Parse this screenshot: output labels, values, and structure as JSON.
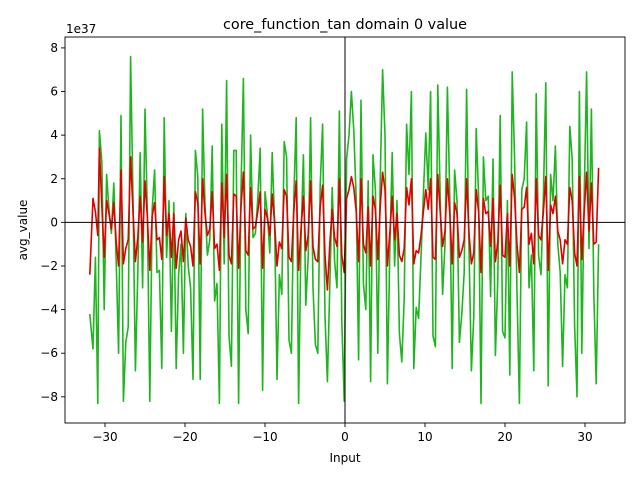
{
  "chart_data": {
    "type": "line",
    "title": "core_function_tan domain 0 value",
    "xlabel": "Input",
    "ylabel": "avg_value",
    "y_offset_label": "1e37",
    "xlim": [
      -35,
      35
    ],
    "ylim": [
      -9.2,
      8.5
    ],
    "x_ticks": [
      -30,
      -20,
      -10,
      0,
      10,
      20,
      30
    ],
    "x_tick_labels": [
      "−30",
      "−20",
      "−10",
      "0",
      "10",
      "20",
      "30"
    ],
    "y_ticks": [
      -8,
      -6,
      -4,
      -2,
      0,
      2,
      4,
      6,
      8
    ],
    "y_tick_labels": [
      "−8",
      "−6",
      "−4",
      "−2",
      "0",
      "2",
      "4",
      "6",
      "8"
    ],
    "zero_lines": true,
    "grid": false,
    "x_domain": [
      -31.9,
      31.9
    ],
    "series": [
      {
        "color": "#2ca02c",
        "stroke": "#1fb51f",
        "x": [
          -31.9,
          -31.5,
          -31.2,
          -30.9,
          -30.7,
          -30.4,
          -30.1,
          -29.8,
          -29.5,
          -29.2,
          -28.9,
          -28.6,
          -28.3,
          -28.0,
          -27.7,
          -27.4,
          -27.1,
          -26.8,
          -26.5,
          -26.2,
          -25.9,
          -25.6,
          -25.3,
          -25.0,
          -24.7,
          -24.4,
          -24.1,
          -23.8,
          -23.5,
          -23.2,
          -22.9,
          -22.6,
          -22.3,
          -22.0,
          -21.7,
          -21.4,
          -21.1,
          -20.8,
          -20.5,
          -20.2,
          -19.9,
          -19.6,
          -19.3,
          -19.0,
          -18.7,
          -18.4,
          -18.1,
          -17.8,
          -17.5,
          -17.2,
          -16.9,
          -16.6,
          -16.3,
          -16.0,
          -15.7,
          -15.4,
          -15.1,
          -14.8,
          -14.5,
          -14.2,
          -13.9,
          -13.6,
          -13.3,
          -13.0,
          -12.7,
          -12.4,
          -12.1,
          -11.8,
          -11.5,
          -11.2,
          -10.9,
          -10.6,
          -10.3,
          -10.0,
          -9.7,
          -9.4,
          -9.1,
          -8.8,
          -8.5,
          -8.2,
          -7.9,
          -7.6,
          -7.3,
          -7.0,
          -6.7,
          -6.4,
          -6.1,
          -5.8,
          -5.5,
          -5.2,
          -4.9,
          -4.6,
          -4.3,
          -4.0,
          -3.7,
          -3.4,
          -3.1,
          -2.8,
          -2.5,
          -2.2,
          -1.9,
          -1.6,
          -1.3,
          -1.0,
          -0.7,
          -0.4,
          -0.1,
          0.2,
          0.5,
          0.8,
          1.1,
          1.4,
          1.7,
          2.0,
          2.3,
          2.6,
          2.9,
          3.2,
          3.5,
          3.8,
          4.1,
          4.4,
          4.7,
          5.0,
          5.3,
          5.6,
          5.9,
          6.2,
          6.5,
          6.8,
          7.1,
          7.4,
          7.7,
          8.0,
          8.3,
          8.6,
          8.9,
          9.2,
          9.5,
          9.8,
          10.1,
          10.4,
          10.7,
          11.0,
          11.3,
          11.6,
          11.9,
          12.2,
          12.5,
          12.8,
          13.1,
          13.4,
          13.7,
          14.0,
          14.3,
          14.6,
          14.9,
          15.2,
          15.5,
          15.8,
          16.1,
          16.4,
          16.7,
          17.0,
          17.3,
          17.6,
          17.9,
          18.2,
          18.5,
          18.8,
          19.1,
          19.4,
          19.7,
          20.0,
          20.3,
          20.6,
          20.9,
          21.2,
          21.5,
          21.8,
          22.1,
          22.4,
          22.7,
          23.0,
          23.3,
          23.6,
          23.9,
          24.2,
          24.5,
          24.8,
          25.1,
          25.4,
          25.7,
          26.0,
          26.3,
          26.6,
          26.9,
          27.2,
          27.5,
          27.8,
          28.1,
          28.4,
          28.7,
          29.0,
          29.3,
          29.6,
          29.9,
          30.2,
          30.5,
          30.8,
          31.1,
          31.4,
          31.7
        ],
        "y": [
          -4.2,
          -5.8,
          -1.6,
          -8.3,
          4.2,
          2.8,
          -4.0,
          2.2,
          0.6,
          -0.5,
          1.8,
          -1.8,
          -6.0,
          4.9,
          -8.2,
          -5.5,
          -4.8,
          7.6,
          1.1,
          -6.8,
          -2.3,
          3.2,
          -3.0,
          5.2,
          0.3,
          -8.2,
          0.6,
          2.4,
          -2.3,
          -2.2,
          -6.7,
          4.8,
          -1.6,
          1.0,
          -5.0,
          0.9,
          -6.7,
          -2.4,
          -1.0,
          -6.0,
          0.4,
          -2.0,
          -3.0,
          -7.2,
          3.3,
          2.1,
          -7.2,
          5.2,
          0.8,
          -1.5,
          -0.8,
          3.5,
          -3.6,
          -2.8,
          -8.3,
          4.5,
          -1.9,
          6.5,
          -5.2,
          -6.6,
          3.3,
          3.3,
          -8.3,
          1.5,
          6.6,
          -4.0,
          -5.1,
          4.0,
          -0.7,
          -0.5,
          1.1,
          3.4,
          -7.7,
          1.4,
          0.4,
          -1.4,
          3.2,
          0.0,
          -7.2,
          -2.4,
          -3.3,
          3.7,
          3.0,
          -5.4,
          -6.0,
          1.1,
          4.8,
          -8.3,
          -0.8,
          3.1,
          -3.8,
          -1.6,
          4.8,
          -3.0,
          -5.6,
          -6.0,
          1.7,
          4.5,
          -4.3,
          -7.3,
          -2.9,
          1.6,
          -1.8,
          -3.0,
          5.1,
          -4.5,
          -8.2,
          2.9,
          4.0,
          6.0,
          4.2,
          1.1,
          -6.3,
          5.6,
          -2.8,
          -4.0,
          1.9,
          -7.3,
          3.1,
          1.5,
          -6.0,
          1.9,
          7.0,
          4.0,
          -7.4,
          -1.3,
          3.2,
          -2.0,
          1.0,
          -5.1,
          -6.4,
          -3.5,
          4.5,
          2.2,
          6.0,
          -6.7,
          -3.9,
          -4.4,
          -1.6,
          1.3,
          4.1,
          1.5,
          6.0,
          -5.2,
          -5.7,
          6.3,
          1.2,
          -3.3,
          -1.0,
          6.2,
          1.1,
          -6.7,
          2.4,
          1.0,
          -5.5,
          -4.2,
          -2.3,
          6.1,
          -1.2,
          -6.8,
          -4.3,
          4.3,
          1.2,
          -8.3,
          3.0,
          1.0,
          1.2,
          -3.4,
          2.9,
          -6.1,
          -2.6,
          4.9,
          -5.0,
          -5.3,
          1.0,
          -7.0,
          6.9,
          2.9,
          -3.2,
          -8.3,
          1.5,
          2.0,
          4.6,
          -3.0,
          -1.5,
          -6.8,
          5.9,
          -1.5,
          -2.4,
          1.2,
          6.4,
          -7.5,
          2.2,
          1.0,
          3.5,
          -1.0,
          -2.3,
          -6.6,
          -2.4,
          -3.0,
          4.4,
          2.9,
          -4.7,
          -8.0,
          6.0,
          -6.0,
          1.2,
          6.9,
          -1.2,
          5.2,
          -3.2,
          -7.4,
          -1.0
        ]
      },
      {
        "color": "#d62728",
        "stroke": "#e00000",
        "x": [
          -31.9,
          -31.5,
          -31.2,
          -30.9,
          -30.7,
          -30.4,
          -30.1,
          -29.8,
          -29.5,
          -29.2,
          -28.9,
          -28.6,
          -28.3,
          -28.0,
          -27.7,
          -27.4,
          -27.1,
          -26.8,
          -26.5,
          -26.2,
          -25.9,
          -25.6,
          -25.3,
          -25.0,
          -24.7,
          -24.4,
          -24.1,
          -23.8,
          -23.5,
          -23.2,
          -22.9,
          -22.6,
          -22.3,
          -22.0,
          -21.7,
          -21.4,
          -21.1,
          -20.8,
          -20.5,
          -20.2,
          -19.9,
          -19.6,
          -19.3,
          -19.0,
          -18.7,
          -18.4,
          -18.1,
          -17.8,
          -17.5,
          -17.2,
          -16.9,
          -16.6,
          -16.3,
          -16.0,
          -15.7,
          -15.4,
          -15.1,
          -14.8,
          -14.5,
          -14.2,
          -13.9,
          -13.6,
          -13.3,
          -13.0,
          -12.7,
          -12.4,
          -12.1,
          -11.8,
          -11.5,
          -11.2,
          -10.9,
          -10.6,
          -10.3,
          -10.0,
          -9.7,
          -9.4,
          -9.1,
          -8.8,
          -8.5,
          -8.2,
          -7.9,
          -7.6,
          -7.3,
          -7.0,
          -6.7,
          -6.4,
          -6.1,
          -5.8,
          -5.5,
          -5.2,
          -4.9,
          -4.6,
          -4.3,
          -4.0,
          -3.7,
          -3.4,
          -3.1,
          -2.8,
          -2.5,
          -2.2,
          -1.9,
          -1.6,
          -1.3,
          -1.0,
          -0.7,
          -0.4,
          -0.1,
          0.2,
          0.5,
          0.8,
          1.1,
          1.4,
          1.7,
          2.0,
          2.3,
          2.6,
          2.9,
          3.2,
          3.5,
          3.8,
          4.1,
          4.4,
          4.7,
          5.0,
          5.3,
          5.6,
          5.9,
          6.2,
          6.5,
          6.8,
          7.1,
          7.4,
          7.7,
          8.0,
          8.3,
          8.6,
          8.9,
          9.2,
          9.5,
          9.8,
          10.1,
          10.4,
          10.7,
          11.0,
          11.3,
          11.6,
          11.9,
          12.2,
          12.5,
          12.8,
          13.1,
          13.4,
          13.7,
          14.0,
          14.3,
          14.6,
          14.9,
          15.2,
          15.5,
          15.8,
          16.1,
          16.4,
          16.7,
          17.0,
          17.3,
          17.6,
          17.9,
          18.2,
          18.5,
          18.8,
          19.1,
          19.4,
          19.7,
          20.0,
          20.3,
          20.6,
          20.9,
          21.2,
          21.5,
          21.8,
          22.1,
          22.4,
          22.7,
          23.0,
          23.3,
          23.6,
          23.9,
          24.2,
          24.5,
          24.8,
          25.1,
          25.4,
          25.7,
          26.0,
          26.3,
          26.6,
          26.9,
          27.2,
          27.5,
          27.8,
          28.1,
          28.4,
          28.7,
          29.0,
          29.3,
          29.6,
          29.9,
          30.2,
          30.5,
          30.8,
          31.1,
          31.4,
          31.7
        ],
        "y": [
          -2.4,
          1.1,
          0.5,
          -0.6,
          3.4,
          0.8,
          -1.6,
          1.0,
          0.4,
          -0.3,
          0.9,
          -0.9,
          -2.0,
          2.4,
          -1.9,
          -1.2,
          -0.8,
          3.0,
          0.5,
          -1.8,
          -0.7,
          1.2,
          -0.9,
          1.9,
          0.2,
          -2.2,
          0.3,
          0.9,
          -0.8,
          -0.7,
          -1.7,
          2.1,
          -0.6,
          0.4,
          -1.6,
          0.4,
          -2.1,
          -0.8,
          -0.4,
          -1.8,
          0.2,
          -0.8,
          -1.1,
          -2.0,
          1.4,
          0.9,
          -1.9,
          2.0,
          0.4,
          -0.6,
          -0.3,
          1.4,
          -1.2,
          -1.0,
          -2.2,
          1.8,
          -0.7,
          2.2,
          -1.5,
          -1.9,
          1.3,
          1.2,
          -2.1,
          0.7,
          2.3,
          -1.3,
          -1.5,
          1.6,
          -0.3,
          -0.2,
          0.5,
          1.4,
          -2.1,
          0.6,
          0.2,
          -0.6,
          1.3,
          0.0,
          -2.0,
          -0.9,
          -1.2,
          1.5,
          1.2,
          -1.6,
          -1.8,
          0.5,
          1.9,
          -2.2,
          -0.3,
          1.2,
          -1.3,
          -0.6,
          1.9,
          -1.1,
          -1.7,
          -1.8,
          0.7,
          1.7,
          -1.5,
          -3.1,
          -1.0,
          0.6,
          -0.7,
          -1.1,
          2.0,
          -1.5,
          -2.3,
          1.1,
          1.5,
          2.1,
          1.6,
          0.5,
          -1.8,
          2.0,
          -1.0,
          -1.4,
          0.7,
          -2.0,
          1.2,
          0.6,
          -1.7,
          0.7,
          2.3,
          1.5,
          -2.0,
          -0.5,
          1.2,
          -0.8,
          0.4,
          -1.5,
          -1.8,
          -1.2,
          1.6,
          0.8,
          2.0,
          -1.9,
          -1.3,
          -1.4,
          -0.6,
          0.5,
          1.5,
          0.6,
          2.0,
          -1.6,
          -1.7,
          2.2,
          0.5,
          -1.1,
          -0.4,
          2.0,
          0.4,
          -1.9,
          0.9,
          0.4,
          -1.6,
          -1.3,
          -0.8,
          2.0,
          -0.5,
          -1.9,
          -1.4,
          1.5,
          0.5,
          -2.3,
          1.1,
          0.4,
          0.5,
          -1.1,
          1.1,
          -1.8,
          -0.9,
          1.7,
          -1.5,
          -1.6,
          0.4,
          -2.0,
          2.2,
          1.1,
          -1.0,
          -2.3,
          0.6,
          0.7,
          1.6,
          -1.0,
          -0.5,
          -1.9,
          2.0,
          -0.6,
          -0.8,
          0.5,
          2.1,
          -2.2,
          0.8,
          0.4,
          1.2,
          -0.4,
          -0.8,
          -1.9,
          -0.8,
          -1.0,
          1.6,
          1.0,
          -1.4,
          -2.0,
          2.1,
          -1.7,
          0.5,
          2.3,
          -0.4,
          1.8,
          -1.0,
          -0.9,
          2.5
        ]
      }
    ]
  }
}
